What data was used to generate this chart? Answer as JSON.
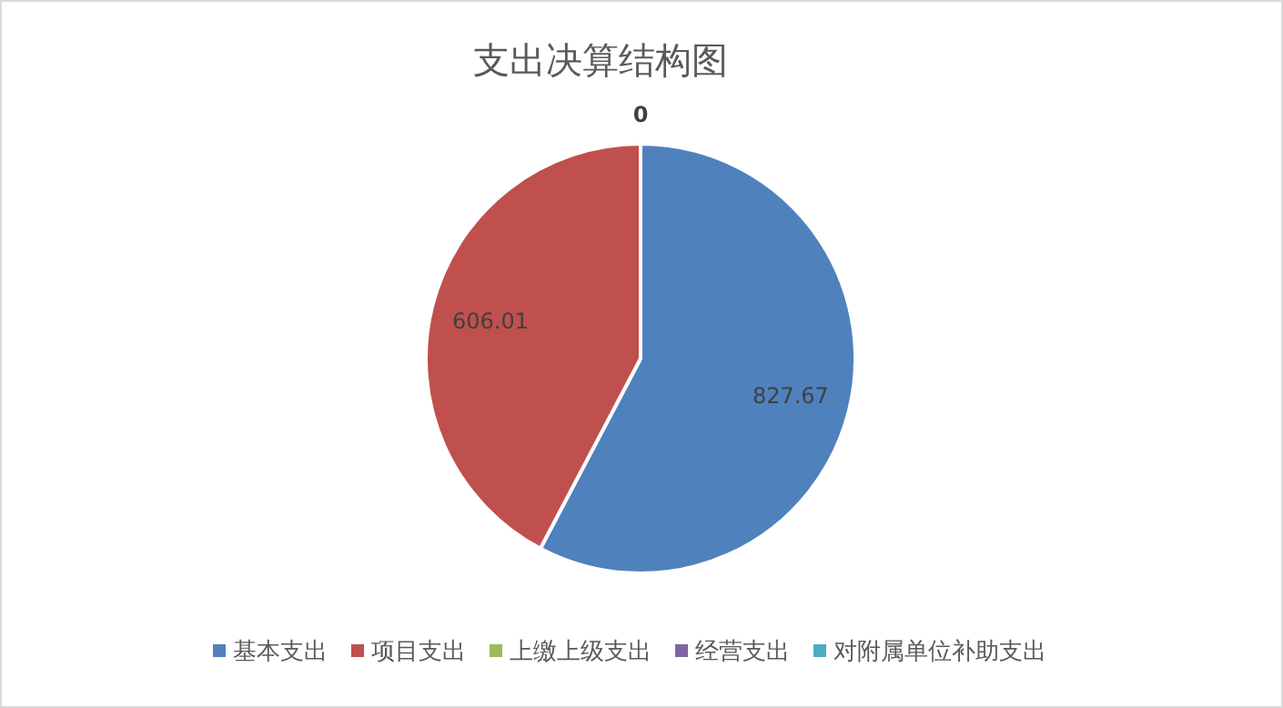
{
  "chart_data": {
    "type": "pie",
    "title": "支出决算结构图",
    "categories": [
      "基本支出",
      "项目支出",
      "上缴上级支出",
      "经营支出",
      "对附属单位补助支出"
    ],
    "values": [
      827.67,
      606.01,
      0,
      0,
      0
    ],
    "colors": [
      "#4f81bd",
      "#c0504d",
      "#9bbb59",
      "#8064a2",
      "#4bacc6"
    ],
    "value_labels": [
      "827.67",
      "606.01",
      "0",
      null,
      null
    ],
    "legend": "bottom"
  }
}
